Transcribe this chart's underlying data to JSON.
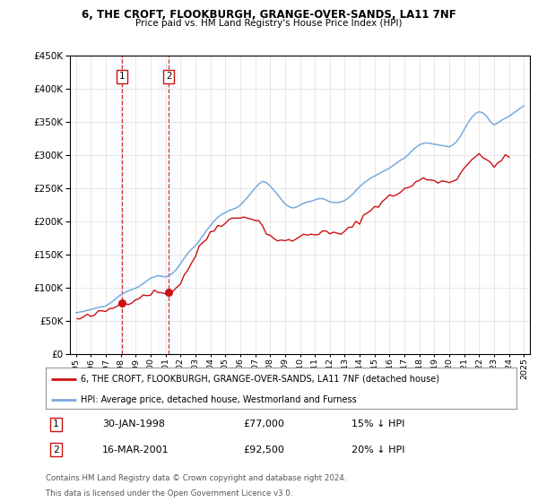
{
  "title1": "6, THE CROFT, FLOOKBURGH, GRANGE-OVER-SANDS, LA11 7NF",
  "title2": "Price paid vs. HM Land Registry's House Price Index (HPI)",
  "ylim": [
    0,
    450000
  ],
  "yticks": [
    0,
    50000,
    100000,
    150000,
    200000,
    250000,
    300000,
    350000,
    400000,
    450000
  ],
  "legend_line1": "6, THE CROFT, FLOOKBURGH, GRANGE-OVER-SANDS, LA11 7NF (detached house)",
  "legend_line2": "HPI: Average price, detached house, Westmorland and Furness",
  "sale1_date": "30-JAN-1998",
  "sale1_price": 77000,
  "sale1_hpi": "15% ↓ HPI",
  "sale2_date": "16-MAR-2001",
  "sale2_price": 92500,
  "sale2_hpi": "20% ↓ HPI",
  "footnote1": "Contains HM Land Registry data © Crown copyright and database right 2024.",
  "footnote2": "This data is licensed under the Open Government Licence v3.0.",
  "hpi_color": "#7aaadd",
  "price_color": "#cc1111",
  "shade_color": "#ddeeff",
  "background_color": "#ffffff",
  "grid_color": "#dddddd",
  "hpi_x": [
    1995.0,
    1995.25,
    1995.5,
    1995.75,
    1996.0,
    1996.25,
    1996.5,
    1996.75,
    1997.0,
    1997.25,
    1997.5,
    1997.75,
    1998.0,
    1998.25,
    1998.5,
    1998.75,
    1999.0,
    1999.25,
    1999.5,
    1999.75,
    2000.0,
    2000.25,
    2000.5,
    2000.75,
    2001.0,
    2001.25,
    2001.5,
    2001.75,
    2002.0,
    2002.25,
    2002.5,
    2002.75,
    2003.0,
    2003.25,
    2003.5,
    2003.75,
    2004.0,
    2004.25,
    2004.5,
    2004.75,
    2005.0,
    2005.25,
    2005.5,
    2005.75,
    2006.0,
    2006.25,
    2006.5,
    2006.75,
    2007.0,
    2007.25,
    2007.5,
    2007.75,
    2008.0,
    2008.25,
    2008.5,
    2008.75,
    2009.0,
    2009.25,
    2009.5,
    2009.75,
    2010.0,
    2010.25,
    2010.5,
    2010.75,
    2011.0,
    2011.25,
    2011.5,
    2011.75,
    2012.0,
    2012.25,
    2012.5,
    2012.75,
    2013.0,
    2013.25,
    2013.5,
    2013.75,
    2014.0,
    2014.25,
    2014.5,
    2014.75,
    2015.0,
    2015.25,
    2015.5,
    2015.75,
    2016.0,
    2016.25,
    2016.5,
    2016.75,
    2017.0,
    2017.25,
    2017.5,
    2017.75,
    2018.0,
    2018.25,
    2018.5,
    2018.75,
    2019.0,
    2019.25,
    2019.5,
    2019.75,
    2020.0,
    2020.25,
    2020.5,
    2020.75,
    2021.0,
    2021.25,
    2021.5,
    2021.75,
    2022.0,
    2022.25,
    2022.5,
    2022.75,
    2023.0,
    2023.25,
    2023.5,
    2023.75,
    2024.0,
    2024.25,
    2024.5,
    2024.75,
    2025.0
  ],
  "hpi_y": [
    62000,
    63000,
    64000,
    65500,
    67000,
    68500,
    70000,
    71000,
    72000,
    76000,
    80000,
    85000,
    89000,
    92000,
    95000,
    97000,
    99000,
    102000,
    106000,
    110000,
    114000,
    116000,
    118000,
    117000,
    116000,
    118000,
    122000,
    128000,
    136000,
    144000,
    152000,
    158000,
    163000,
    170000,
    178000,
    186000,
    193000,
    200000,
    206000,
    210000,
    213000,
    216000,
    218000,
    220000,
    224000,
    230000,
    236000,
    243000,
    250000,
    256000,
    260000,
    258000,
    253000,
    247000,
    240000,
    233000,
    226000,
    222000,
    220000,
    221000,
    224000,
    227000,
    229000,
    230000,
    232000,
    234000,
    234000,
    232000,
    229000,
    228000,
    228000,
    229000,
    231000,
    235000,
    240000,
    246000,
    252000,
    257000,
    261000,
    265000,
    268000,
    271000,
    274000,
    277000,
    280000,
    284000,
    288000,
    292000,
    295000,
    300000,
    306000,
    311000,
    315000,
    317000,
    318000,
    317000,
    316000,
    315000,
    314000,
    313000,
    312000,
    315000,
    320000,
    328000,
    338000,
    348000,
    356000,
    362000,
    365000,
    363000,
    358000,
    350000,
    345000,
    348000,
    352000,
    355000,
    358000,
    362000,
    366000,
    370000,
    374000
  ],
  "price_x": [
    1995.08,
    1995.25,
    1995.5,
    1995.75,
    1996.0,
    1996.25,
    1996.5,
    1996.75,
    1997.0,
    1997.25,
    1997.5,
    1997.75,
    1998.08,
    1998.5,
    1998.75,
    1999.0,
    1999.25,
    1999.5,
    1999.75,
    2000.0,
    2000.25,
    2000.5,
    2000.75,
    2001.21,
    2001.5,
    2001.75,
    2002.0,
    2002.25,
    2002.5,
    2002.75,
    2003.0,
    2003.25,
    2003.5,
    2003.75,
    2004.0,
    2004.25,
    2004.5,
    2004.75,
    2005.0,
    2005.25,
    2005.5,
    2005.75,
    2006.0,
    2006.25,
    2006.5,
    2006.75,
    2007.0,
    2007.25,
    2007.5,
    2007.75,
    2008.0,
    2008.25,
    2008.5,
    2008.75,
    2009.0,
    2009.25,
    2009.5,
    2009.75,
    2010.0,
    2010.25,
    2010.5,
    2010.75,
    2011.0,
    2011.25,
    2011.5,
    2011.75,
    2012.0,
    2012.25,
    2012.5,
    2012.75,
    2013.0,
    2013.25,
    2013.5,
    2013.75,
    2014.0,
    2014.25,
    2014.5,
    2014.75,
    2015.0,
    2015.25,
    2015.5,
    2015.75,
    2016.0,
    2016.25,
    2016.5,
    2016.75,
    2017.0,
    2017.25,
    2017.5,
    2017.75,
    2018.0,
    2018.25,
    2018.5,
    2018.75,
    2019.0,
    2019.25,
    2019.5,
    2019.75,
    2020.0,
    2020.25,
    2020.5,
    2020.75,
    2021.0,
    2021.25,
    2021.5,
    2021.75,
    2022.0,
    2022.25,
    2022.5,
    2022.75,
    2023.0,
    2023.25,
    2023.5,
    2023.75,
    2024.0
  ],
  "price_y": [
    52000,
    53000,
    54000,
    56000,
    57000,
    59000,
    61000,
    63000,
    65000,
    67000,
    70000,
    73000,
    77000,
    79000,
    81000,
    83000,
    86000,
    88000,
    90000,
    92000,
    92500,
    93000,
    92000,
    92500,
    96000,
    100000,
    108000,
    118000,
    128000,
    138000,
    148000,
    158000,
    168000,
    175000,
    182000,
    188000,
    193000,
    197000,
    200000,
    202000,
    203000,
    204000,
    205000,
    207000,
    208000,
    205000,
    202000,
    198000,
    192000,
    185000,
    178000,
    175000,
    172000,
    170000,
    168000,
    170000,
    172000,
    174000,
    176000,
    178000,
    180000,
    181000,
    182000,
    183000,
    183000,
    182000,
    181000,
    181000,
    181000,
    182000,
    184000,
    187000,
    191000,
    196000,
    202000,
    207000,
    212000,
    217000,
    222000,
    226000,
    230000,
    233000,
    236000,
    239000,
    242000,
    245000,
    247000,
    250000,
    254000,
    258000,
    261000,
    263000,
    264000,
    263000,
    262000,
    261000,
    260000,
    259000,
    258000,
    261000,
    266000,
    273000,
    281000,
    288000,
    293000,
    296000,
    297000,
    295000,
    292000,
    289000,
    286000,
    288000,
    291000,
    294000,
    297000
  ]
}
